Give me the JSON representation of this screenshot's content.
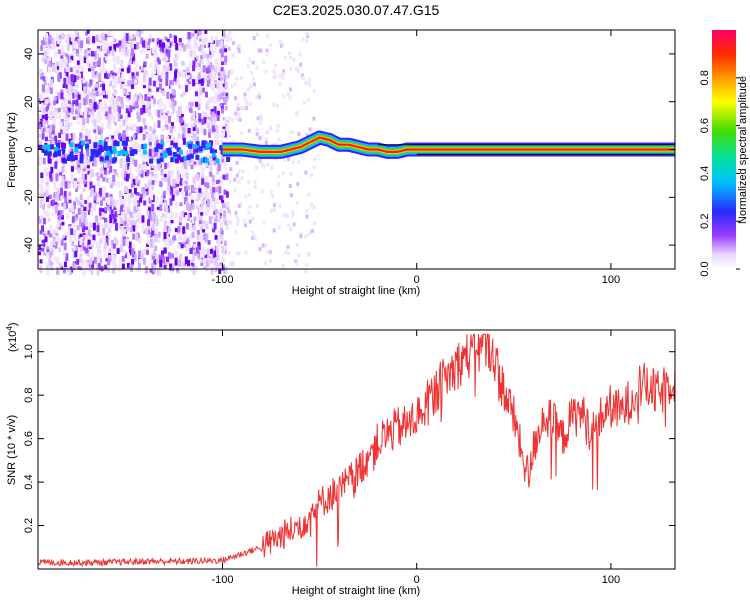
{
  "title": "C2E3.2025.030.07.47.G15",
  "chart_data": [
    {
      "type": "heatmap",
      "xlabel": "Height of straight line (km)",
      "ylabel": "Frequency (Hz)",
      "xlim": [
        -195,
        133
      ],
      "ylim": [
        -50,
        50
      ],
      "x_ticks": [
        -100,
        0,
        100
      ],
      "x_tick_labels": [
        "-100",
        "0",
        "100"
      ],
      "y_ticks": [
        -40,
        -20,
        0,
        20,
        40
      ],
      "y_tick_labels": [
        "-40",
        "-20",
        "0",
        "20",
        "40"
      ],
      "colorbar": {
        "label": "Normalized spectral amplitude",
        "range": [
          0,
          1
        ],
        "ticks": [
          0,
          0.2,
          0.4,
          0.6,
          0.8
        ],
        "tick_labels": [
          "0.0",
          "0.2",
          "0.4",
          "0.6",
          "0.8"
        ]
      },
      "ridge": {
        "x": [
          -100,
          -90,
          -80,
          -70,
          -60,
          -55,
          -50,
          -45,
          -40,
          -35,
          -30,
          -25,
          -20,
          -15,
          -10,
          -5,
          0,
          20,
          50,
          80,
          100,
          133
        ],
        "freq": [
          0,
          0,
          -1,
          -1,
          1,
          3,
          5,
          4,
          2,
          2,
          1,
          0,
          0,
          -1,
          -1,
          0,
          0,
          0,
          0,
          0,
          0,
          0
        ]
      }
    },
    {
      "type": "line",
      "xlabel": "Height of straight line (km)",
      "ylabel": "SNR (10 * v/v)",
      "y_multiplier": "(x10",
      "y_multiplier_exp": "4",
      "y_multiplier_close": ")",
      "xlim": [
        -195,
        133
      ],
      "ylim": [
        0,
        1.1
      ],
      "x_ticks": [
        -100,
        0,
        100
      ],
      "x_tick_labels": [
        "-100",
        "0",
        "100"
      ],
      "y_ticks": [
        0.2,
        0.4,
        0.6,
        0.8,
        1.0
      ],
      "y_tick_labels": [
        "0.2",
        "0.4",
        "0.6",
        "0.8",
        "1.0"
      ],
      "color": "#ee3333",
      "series": [
        {
          "x": [
            -195,
            -180,
            -160,
            -140,
            -120,
            -100,
            -90,
            -80,
            -70,
            -60,
            -50,
            -45,
            -40,
            -35,
            -30,
            -25,
            -20,
            -15,
            -10,
            -5,
            0,
            5,
            10,
            15,
            20,
            25,
            30,
            35,
            38,
            40,
            42,
            45,
            50,
            55,
            58,
            60,
            65,
            70,
            75,
            80,
            85,
            90,
            95,
            100,
            105,
            110,
            115,
            120,
            125,
            130,
            133
          ],
          "values": [
            0.03,
            0.03,
            0.03,
            0.035,
            0.035,
            0.04,
            0.07,
            0.1,
            0.15,
            0.2,
            0.3,
            0.34,
            0.36,
            0.4,
            0.45,
            0.52,
            0.58,
            0.62,
            0.65,
            0.66,
            0.7,
            0.76,
            0.82,
            0.88,
            0.93,
            0.98,
            1.0,
            1.02,
            1.03,
            0.98,
            0.9,
            0.82,
            0.7,
            0.5,
            0.42,
            0.55,
            0.7,
            0.68,
            0.6,
            0.7,
            0.72,
            0.62,
            0.7,
            0.75,
            0.72,
            0.78,
            0.85,
            0.83,
            0.8,
            0.86,
            0.9
          ]
        }
      ]
    }
  ]
}
